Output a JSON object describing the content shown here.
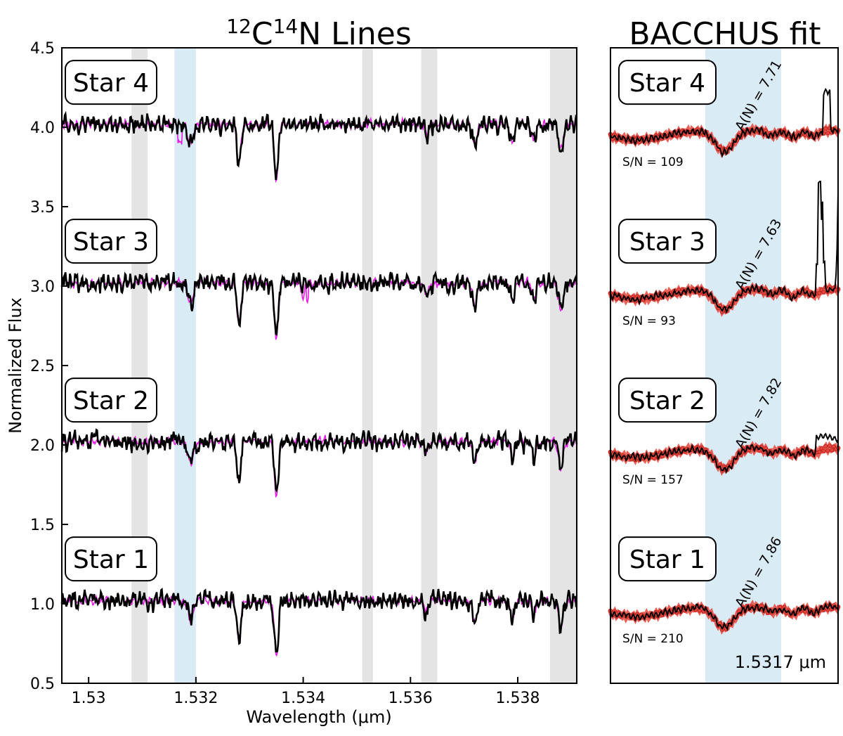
{
  "colors": {
    "observed": "#000000",
    "model": "#e81ce8",
    "fit": "#e8463c",
    "cn_band": "#d9ecf5",
    "masked_band": "#e4e4e4"
  },
  "chart_data": [
    {
      "type": "line",
      "title_prefix": [
        "12",
        "C",
        "14",
        "N"
      ],
      "title_suffix": " Lines",
      "xlabel": "Wavelength (μm)",
      "ylabel": "Normalized Flux",
      "xlim": [
        1.5295,
        1.5391
      ],
      "ylim": [
        0.5,
        4.5
      ],
      "xticks": [
        1.53,
        1.532,
        1.534,
        1.536,
        1.538
      ],
      "xtick_labels": [
        "1.53",
        "1.532",
        "1.534",
        "1.536",
        "1.538"
      ],
      "yticks": [
        0.5,
        1.0,
        1.5,
        2.0,
        2.5,
        3.0,
        3.5,
        4.0,
        4.5
      ],
      "ytick_labels": [
        "0.5",
        "1.0",
        "1.5",
        "2.0",
        "2.5",
        "3.0",
        "3.5",
        "4.0",
        "4.5"
      ],
      "cn_bands": [
        [
          1.5316,
          1.532
        ]
      ],
      "masked_bands": [
        [
          1.5308,
          1.5311
        ],
        [
          1.5351,
          1.5353
        ],
        [
          1.5362,
          1.5365
        ],
        [
          1.5386,
          1.5391
        ]
      ],
      "absorption_lines": [
        {
          "x": 1.5319,
          "depth": 0.13,
          "width": 7e-05
        },
        {
          "x": 1.5328,
          "depth": 0.26,
          "width": 5e-05
        },
        {
          "x": 1.5335,
          "depth": 0.36,
          "width": 5e-05
        },
        {
          "x": 1.5363,
          "depth": 0.06,
          "width": 6e-05
        },
        {
          "x": 1.5372,
          "depth": 0.13,
          "width": 6e-05
        },
        {
          "x": 1.5379,
          "depth": 0.12,
          "width": 5e-05
        },
        {
          "x": 1.5383,
          "depth": 0.1,
          "width": 5e-05
        },
        {
          "x": 1.5388,
          "depth": 0.17,
          "width": 6e-05
        }
      ],
      "stars": [
        {
          "name": "Star 4",
          "offset": 4.0,
          "label_y": 4.15
        },
        {
          "name": "Star 3",
          "offset": 3.0,
          "label_y": 3.15
        },
        {
          "name": "Star 2",
          "offset": 2.0,
          "label_y": 2.15
        },
        {
          "name": "Star 1",
          "offset": 1.0,
          "label_y": 1.15
        }
      ]
    },
    {
      "type": "line",
      "title": "BACCHUS fit",
      "xlim": [
        1.5311,
        1.5323
      ],
      "cn_band": [
        1.5316,
        1.532
      ],
      "line_center": 1.5317,
      "annotation": "1.5317 μm",
      "fits": [
        {
          "name": "Star 4",
          "abundance": "A(N) = 7.71",
          "snr": "S/N  =  109",
          "offset": 4.0
        },
        {
          "name": "Star 3",
          "abundance": "A(N) = 7.63",
          "snr": "S/N  =  93",
          "offset": 3.0
        },
        {
          "name": "Star 2",
          "abundance": "A(N) = 7.82",
          "snr": "S/N  =  157",
          "offset": 2.0
        },
        {
          "name": "Star 1",
          "abundance": "A(N) = 7.86",
          "snr": "S/N  =  210",
          "offset": 1.0
        }
      ]
    }
  ]
}
